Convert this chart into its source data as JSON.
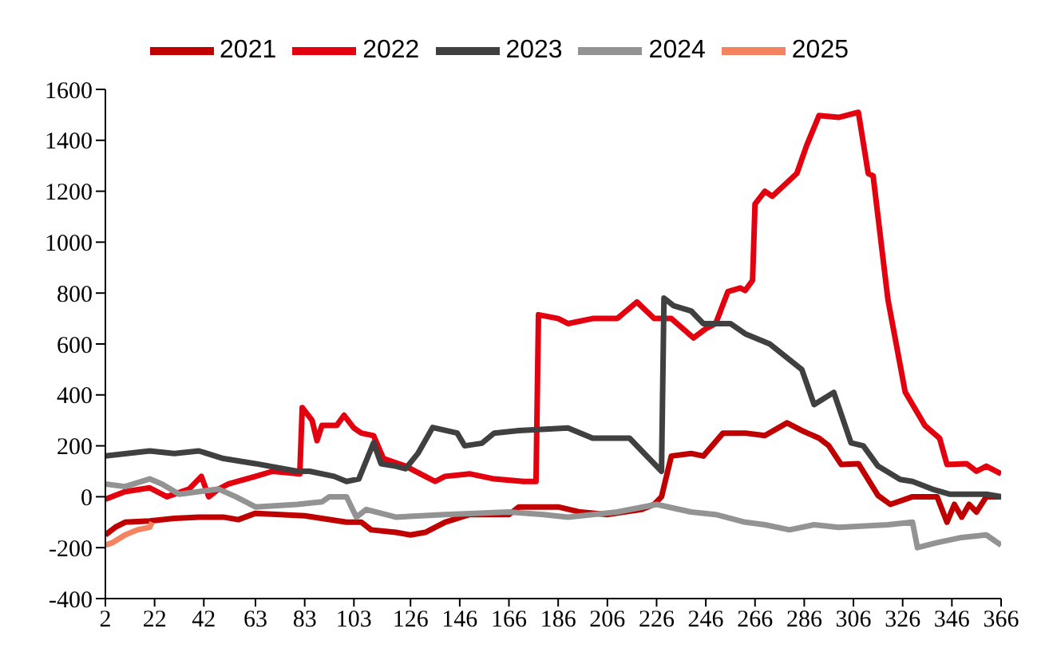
{
  "chart_data": {
    "type": "line",
    "xlim": [
      2,
      366
    ],
    "xticks": [
      2,
      22,
      42,
      63,
      83,
      103,
      126,
      146,
      166,
      186,
      206,
      226,
      246,
      266,
      286,
      306,
      326,
      346,
      366
    ],
    "ylim": [
      -400,
      1600
    ],
    "yticks": [
      -400,
      -200,
      0,
      200,
      400,
      600,
      800,
      1000,
      1200,
      1400,
      1600
    ],
    "grid": false,
    "legend": "top",
    "marker": "none",
    "line_style": "solid",
    "series": [
      {
        "name": "2021",
        "color": "#c00000",
        "x": [
          2,
          6,
          10,
          20,
          30,
          40,
          50,
          56,
          63,
          83,
          100,
          106,
          110,
          120,
          126,
          132,
          140,
          150,
          166,
          170,
          186,
          195,
          206,
          220,
          225,
          228,
          232,
          240,
          245,
          253,
          262,
          270,
          279,
          285,
          292,
          296,
          301,
          308,
          316,
          321,
          330,
          340,
          344,
          347,
          350,
          353,
          356,
          360,
          366
        ],
        "values": [
          -150,
          -120,
          -100,
          -95,
          -85,
          -80,
          -80,
          -90,
          -65,
          -75,
          -100,
          -100,
          -130,
          -140,
          -150,
          -140,
          -100,
          -70,
          -70,
          -40,
          -40,
          -60,
          -70,
          -50,
          -30,
          0,
          160,
          170,
          160,
          250,
          250,
          240,
          290,
          260,
          230,
          200,
          127,
          130,
          5,
          -30,
          0,
          0,
          -100,
          -30,
          -80,
          -30,
          -60,
          0,
          0
        ]
      },
      {
        "name": "2022",
        "color": "#e3000f",
        "x": [
          2,
          10,
          20,
          27,
          36,
          41,
          44,
          48,
          52,
          63,
          70,
          81,
          82,
          86,
          88,
          90,
          96,
          99,
          103,
          106,
          111,
          115,
          124,
          132,
          136,
          140,
          150,
          160,
          172,
          177,
          178,
          186,
          190,
          200,
          210,
          218,
          225,
          232,
          241,
          246,
          250,
          255,
          260,
          262,
          265,
          266,
          270,
          273,
          283,
          287,
          292,
          300,
          308,
          312,
          314,
          320,
          327,
          335,
          341,
          344,
          352,
          356,
          360,
          366
        ],
        "values": [
          -10,
          20,
          35,
          0,
          30,
          80,
          0,
          30,
          50,
          80,
          100,
          90,
          350,
          300,
          220,
          280,
          280,
          320,
          270,
          250,
          240,
          150,
          120,
          80,
          60,
          80,
          90,
          70,
          60,
          60,
          715,
          700,
          680,
          700,
          700,
          765,
          700,
          700,
          624,
          660,
          680,
          806,
          820,
          810,
          850,
          1150,
          1200,
          1180,
          1270,
          1380,
          1497,
          1490,
          1510,
          1270,
          1260,
          775,
          412,
          280,
          230,
          127,
          130,
          100,
          120,
          90
        ]
      },
      {
        "name": "2023",
        "color": "#404040",
        "x": [
          2,
          20,
          30,
          40,
          50,
          63,
          80,
          85,
          95,
          100,
          105,
          111,
          114,
          120,
          124,
          129,
          135,
          145,
          148,
          155,
          160,
          170,
          190,
          200,
          215,
          220,
          228,
          229,
          233,
          240,
          245,
          256,
          262,
          272,
          285,
          290,
          298,
          305,
          310,
          316,
          325,
          330,
          338,
          345,
          360,
          366
        ],
        "values": [
          160,
          180,
          170,
          180,
          150,
          130,
          100,
          100,
          80,
          60,
          70,
          212,
          130,
          120,
          110,
          170,
          272,
          250,
          200,
          210,
          250,
          260,
          270,
          230,
          230,
          180,
          100,
          780,
          750,
          730,
          680,
          680,
          640,
          600,
          500,
          362,
          410,
          212,
          200,
          120,
          68,
          60,
          30,
          10,
          10,
          0
        ]
      },
      {
        "name": "2024",
        "color": "#939393",
        "x": [
          2,
          10,
          20,
          25,
          32,
          40,
          48,
          55,
          63,
          80,
          90,
          93,
          100,
          104,
          108,
          120,
          140,
          166,
          180,
          190,
          210,
          226,
          240,
          250,
          262,
          270,
          280,
          290,
          300,
          320,
          330,
          332,
          340,
          350,
          360,
          366
        ],
        "values": [
          50,
          40,
          70,
          50,
          10,
          20,
          30,
          0,
          -40,
          -30,
          -20,
          0,
          0,
          -80,
          -50,
          -80,
          -70,
          -60,
          -70,
          -80,
          -60,
          -30,
          -60,
          -70,
          -100,
          -110,
          -130,
          -110,
          -120,
          -110,
          -100,
          -200,
          -180,
          -160,
          -150,
          -190
        ]
      },
      {
        "name": "2025",
        "color": "#f4845f",
        "x": [
          2,
          5,
          10,
          15,
          20,
          21
        ],
        "values": [
          -190,
          -180,
          -150,
          -130,
          -120,
          -100
        ]
      }
    ]
  }
}
